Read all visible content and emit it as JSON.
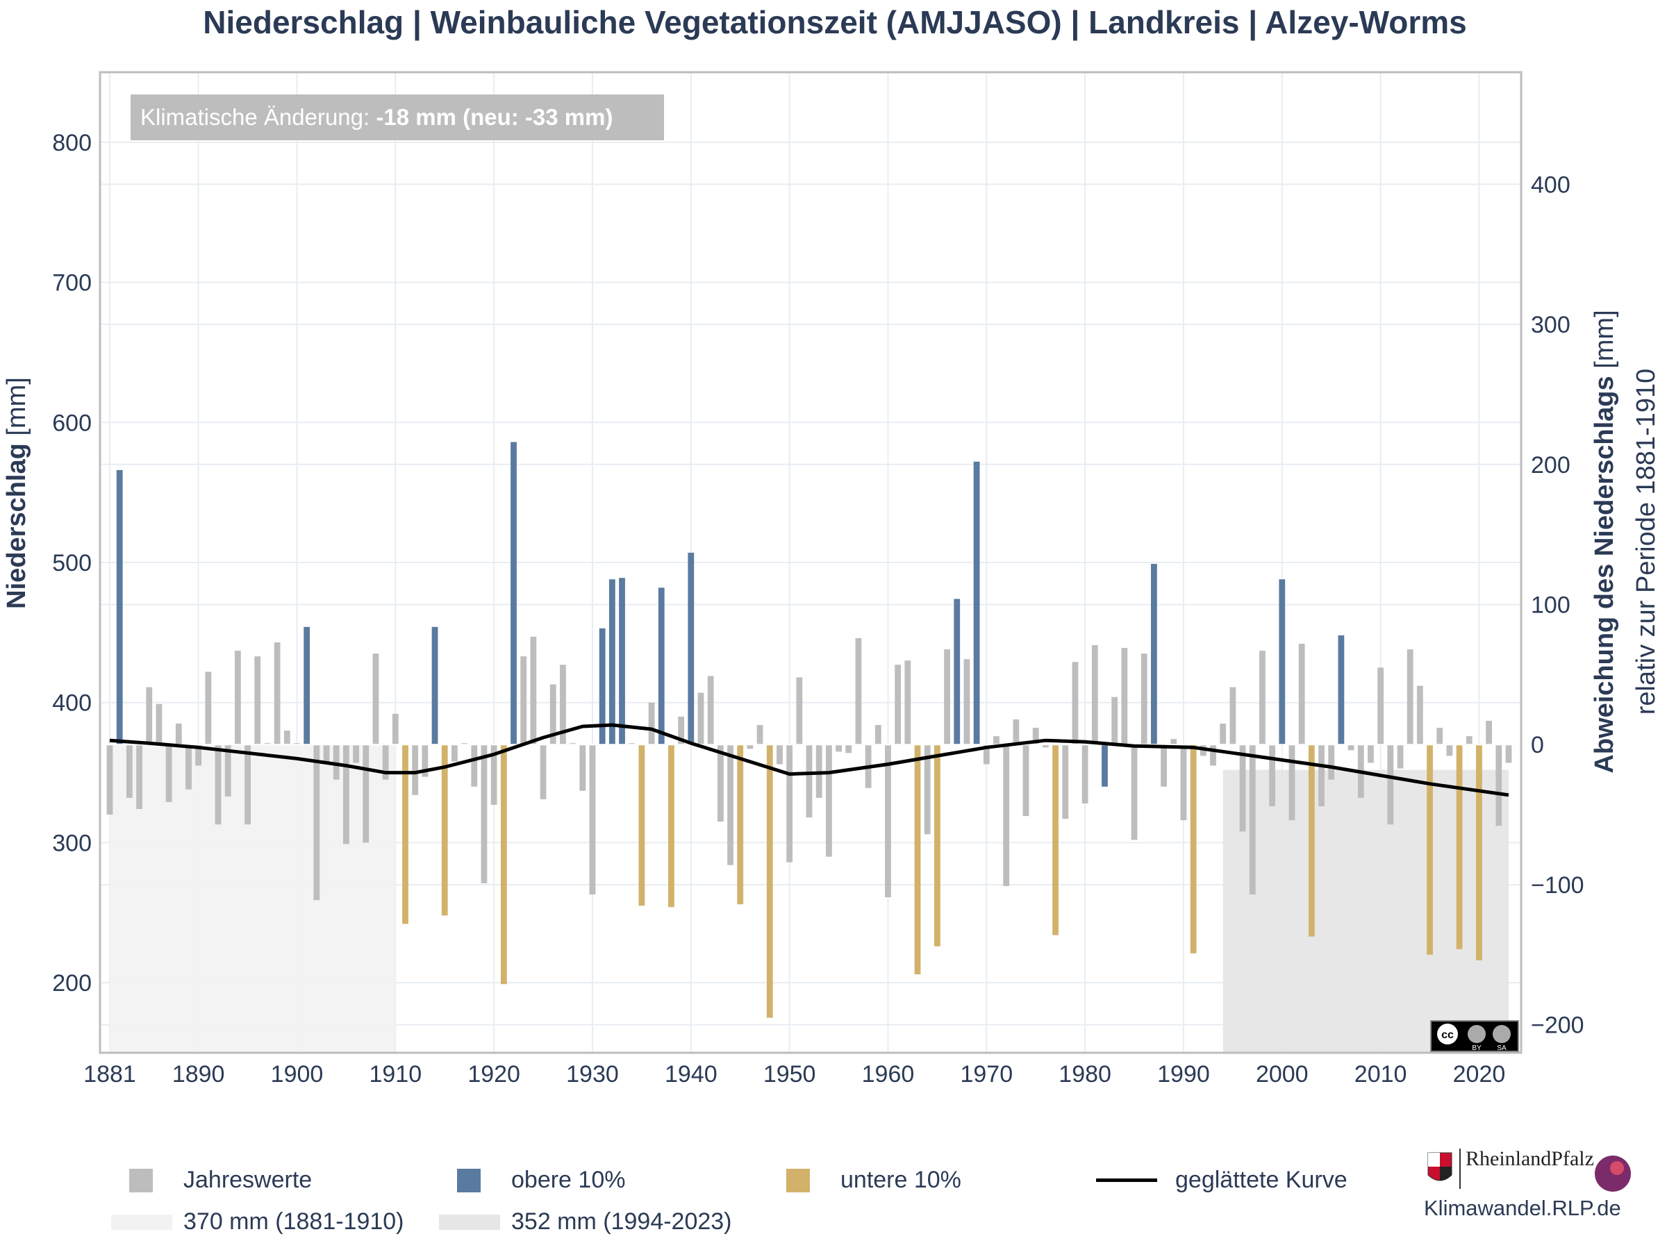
{
  "title": "Niederschlag | Weinbauliche Vegetationszeit (AMJJASO) | Landkreis | Alzey-Worms",
  "annotation": {
    "prefix": "Klimatische Änderung: ",
    "value": "-18 mm (neu: -33 mm)"
  },
  "colors": {
    "normal": "#bdbdbd",
    "upper": "#5a7aa0",
    "lower": "#d2b26a",
    "smooth": "#000000",
    "ref_old": "#f2f2f2",
    "ref_new": "#e6e6e6",
    "text": "#2b3a55"
  },
  "legend": {
    "jahreswerte": "Jahreswerte",
    "obere": "obere 10%",
    "untere": "untere 10%",
    "kurve": "geglättete Kurve",
    "ref_old": "370 mm (1881-1910)",
    "ref_new": "352 mm (1994-2023)"
  },
  "branding": {
    "site": "Klimawandel.RLP.de",
    "state": "RheinlandPfalz",
    "license": "cc BY SA"
  },
  "chart_data": {
    "type": "bar",
    "baseline": 370,
    "ylim_left": [
      150,
      850
    ],
    "ylim_right": [
      -220,
      480
    ],
    "left_ticks": [
      200,
      300,
      400,
      500,
      600,
      700,
      800
    ],
    "right_ticks": [
      -200,
      -100,
      0,
      100,
      200,
      300,
      400
    ],
    "x_ticks": [
      1881,
      1890,
      1900,
      1910,
      1920,
      1930,
      1940,
      1950,
      1960,
      1970,
      1980,
      1990,
      2000,
      2010,
      2020
    ],
    "ylabel_left_bold": "Niederschlag",
    "ylabel_left_unit": " [mm]",
    "ylabel_right_bold": "Abweichung des Niederschlags",
    "ylabel_right_unit": " [mm]",
    "ylabel_right_sub": "relativ zur Periode 1881-1910",
    "ref_periods": [
      {
        "label": "370 mm (1881-1910)",
        "start": 1881,
        "end": 1910,
        "value": 370
      },
      {
        "label": "352 mm (1994-2023)",
        "start": 1994,
        "end": 2023,
        "value": 352
      }
    ],
    "years": [
      1881,
      1882,
      1883,
      1884,
      1885,
      1886,
      1887,
      1888,
      1889,
      1890,
      1891,
      1892,
      1893,
      1894,
      1895,
      1896,
      1897,
      1898,
      1899,
      1900,
      1901,
      1902,
      1903,
      1904,
      1905,
      1906,
      1907,
      1908,
      1909,
      1910,
      1911,
      1912,
      1913,
      1914,
      1915,
      1916,
      1917,
      1918,
      1919,
      1920,
      1921,
      1922,
      1923,
      1924,
      1925,
      1926,
      1927,
      1928,
      1929,
      1930,
      1931,
      1932,
      1933,
      1934,
      1935,
      1936,
      1937,
      1938,
      1939,
      1940,
      1941,
      1942,
      1943,
      1944,
      1945,
      1946,
      1947,
      1948,
      1949,
      1950,
      1951,
      1952,
      1953,
      1954,
      1955,
      1956,
      1957,
      1958,
      1959,
      1960,
      1961,
      1962,
      1963,
      1964,
      1965,
      1966,
      1967,
      1968,
      1969,
      1970,
      1971,
      1972,
      1973,
      1974,
      1975,
      1976,
      1977,
      1978,
      1979,
      1980,
      1981,
      1982,
      1983,
      1984,
      1985,
      1986,
      1987,
      1988,
      1989,
      1990,
      1991,
      1992,
      1993,
      1994,
      1995,
      1996,
      1997,
      1998,
      1999,
      2000,
      2001,
      2002,
      2003,
      2004,
      2005,
      2006,
      2007,
      2008,
      2009,
      2010,
      2011,
      2012,
      2013,
      2014,
      2015,
      2016,
      2017,
      2018,
      2019,
      2020,
      2021,
      2022,
      2023
    ],
    "values": [
      320,
      566,
      332,
      324,
      411,
      399,
      329,
      385,
      338,
      355,
      422,
      313,
      333,
      437,
      313,
      433,
      371,
      443,
      380,
      371,
      454,
      259,
      357,
      345,
      299,
      357,
      300,
      435,
      345,
      392,
      242,
      334,
      347,
      454,
      248,
      358,
      371,
      340,
      271,
      327,
      199,
      586,
      433,
      447,
      331,
      413,
      427,
      371,
      337,
      263,
      453,
      488,
      489,
      371,
      255,
      400,
      482,
      254,
      390,
      507,
      407,
      419,
      315,
      284,
      256,
      367,
      384,
      175,
      356,
      286,
      418,
      318,
      332,
      290,
      365,
      364,
      446,
      339,
      384,
      261,
      427,
      430,
      206,
      306,
      226,
      438,
      474,
      431,
      572,
      356,
      376,
      269,
      388,
      319,
      382,
      368,
      234,
      317,
      429,
      328,
      441,
      340,
      404,
      439,
      302,
      435,
      499,
      340,
      374,
      316,
      221,
      362,
      355,
      385,
      411,
      308,
      263,
      437,
      326,
      488,
      316,
      442,
      233,
      326,
      345,
      448,
      366,
      332,
      357,
      425,
      313,
      353,
      438,
      412,
      220,
      382,
      362,
      224,
      376,
      216,
      387,
      312,
      357
    ],
    "categories_values": [
      "normal",
      "upper",
      "normal",
      "normal",
      "normal",
      "normal",
      "normal",
      "normal",
      "normal",
      "normal",
      "normal",
      "normal",
      "normal",
      "normal",
      "normal",
      "normal",
      "normal",
      "normal",
      "normal",
      "normal",
      "upper",
      "normal",
      "normal",
      "normal",
      "normal",
      "normal",
      "normal",
      "normal",
      "normal",
      "normal",
      "lower",
      "normal",
      "normal",
      "upper",
      "lower",
      "normal",
      "normal",
      "normal",
      "normal",
      "normal",
      "lower",
      "upper",
      "normal",
      "normal",
      "normal",
      "normal",
      "normal",
      "normal",
      "normal",
      "normal",
      "upper",
      "upper",
      "upper",
      "normal",
      "lower",
      "normal",
      "upper",
      "lower",
      "normal",
      "upper",
      "normal",
      "normal",
      "normal",
      "normal",
      "lower",
      "normal",
      "normal",
      "lower",
      "normal",
      "normal",
      "normal",
      "normal",
      "normal",
      "normal",
      "normal",
      "normal",
      "normal",
      "normal",
      "normal",
      "normal",
      "normal",
      "normal",
      "lower",
      "normal",
      "lower",
      "normal",
      "upper",
      "normal",
      "upper",
      "normal",
      "normal",
      "normal",
      "normal",
      "normal",
      "normal",
      "normal",
      "lower",
      "normal",
      "normal",
      "normal",
      "normal",
      "upper",
      "normal",
      "normal",
      "normal",
      "normal",
      "upper",
      "normal",
      "normal",
      "normal",
      "lower",
      "normal",
      "normal",
      "normal",
      "normal",
      "normal",
      "normal",
      "normal",
      "normal",
      "upper",
      "normal",
      "normal",
      "lower",
      "normal",
      "normal",
      "upper",
      "normal",
      "normal",
      "normal",
      "normal",
      "normal",
      "normal",
      "normal",
      "normal",
      "lower",
      "normal",
      "normal",
      "lower",
      "normal",
      "lower",
      "normal",
      "normal",
      "normal"
    ],
    "smooth_x": [
      1881,
      1885,
      1890,
      1895,
      1900,
      1905,
      1909,
      1912,
      1915,
      1920,
      1925,
      1929,
      1932,
      1936,
      1940,
      1945,
      1950,
      1954,
      1960,
      1965,
      1970,
      1976,
      1980,
      1985,
      1991,
      1995,
      2000,
      2005,
      2010,
      2015,
      2020,
      2023
    ],
    "smooth_y": [
      373,
      371,
      368,
      364,
      360,
      355,
      350,
      350,
      354,
      363,
      375,
      383,
      384,
      381,
      371,
      360,
      349,
      350,
      356,
      362,
      368,
      373,
      372,
      369,
      368,
      364,
      359,
      354,
      348,
      342,
      337,
      334
    ]
  }
}
